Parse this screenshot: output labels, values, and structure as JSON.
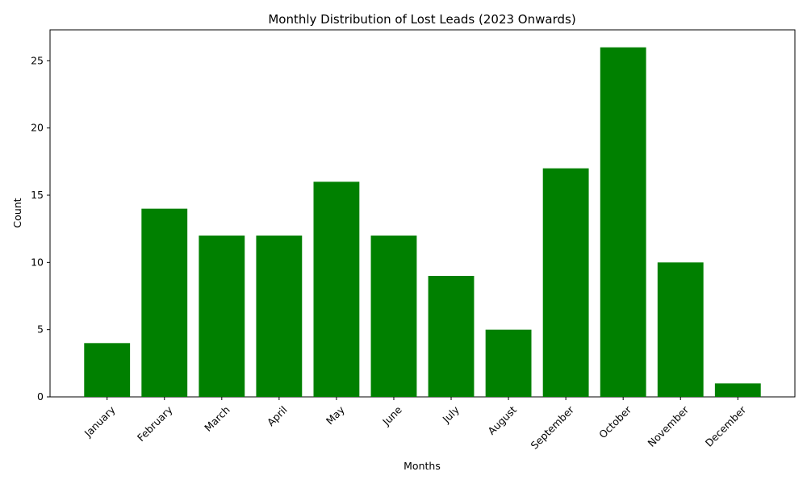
{
  "chart_data": {
    "type": "bar",
    "title": "Monthly Distribution of Lost Leads (2023 Onwards)",
    "xlabel": "Months",
    "ylabel": "Count",
    "categories": [
      "January",
      "February",
      "March",
      "April",
      "May",
      "June",
      "July",
      "August",
      "September",
      "October",
      "November",
      "December"
    ],
    "values": [
      4,
      14,
      12,
      12,
      16,
      12,
      9,
      5,
      17,
      26,
      10,
      1
    ],
    "ylim": [
      0,
      27.3
    ],
    "yticks": [
      0,
      5,
      10,
      15,
      20,
      25
    ],
    "bar_color": "#008000",
    "grid": false,
    "legend": "none",
    "xtick_rotation": 45
  }
}
